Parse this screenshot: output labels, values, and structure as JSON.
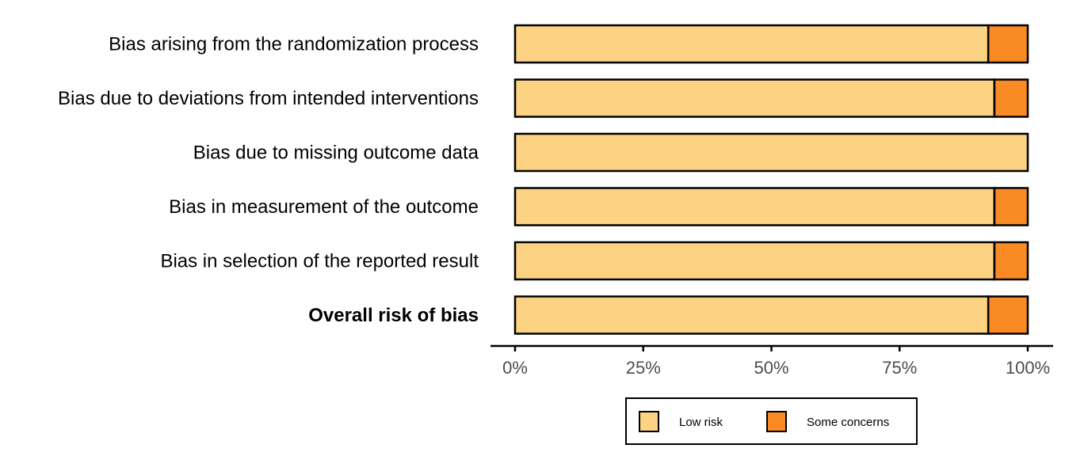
{
  "chart_data": {
    "type": "bar",
    "orientation": "horizontal",
    "stacked": true,
    "categories": [
      "Bias arising from the randomization process",
      "Bias due to deviations from intended interventions",
      "Bias due to missing outcome data",
      "Bias in measurement of the outcome",
      "Bias in selection of the reported result",
      "Overall risk of bias"
    ],
    "bold_categories": [
      "Overall risk of bias"
    ],
    "series": [
      {
        "name": "Low risk",
        "color": "#FCD283",
        "values": [
          92.3,
          93.5,
          100,
          93.5,
          93.5,
          92.3
        ]
      },
      {
        "name": "Some concerns",
        "color": "#F98A24",
        "values": [
          7.7,
          6.5,
          0,
          6.5,
          6.5,
          7.7
        ]
      }
    ],
    "xlim": [
      0,
      100
    ],
    "xticks": [
      0,
      25,
      50,
      75,
      100
    ],
    "xtick_labels": [
      "0%",
      "25%",
      "50%",
      "75%",
      "100%"
    ],
    "grid": false,
    "legend_position": "bottom"
  }
}
